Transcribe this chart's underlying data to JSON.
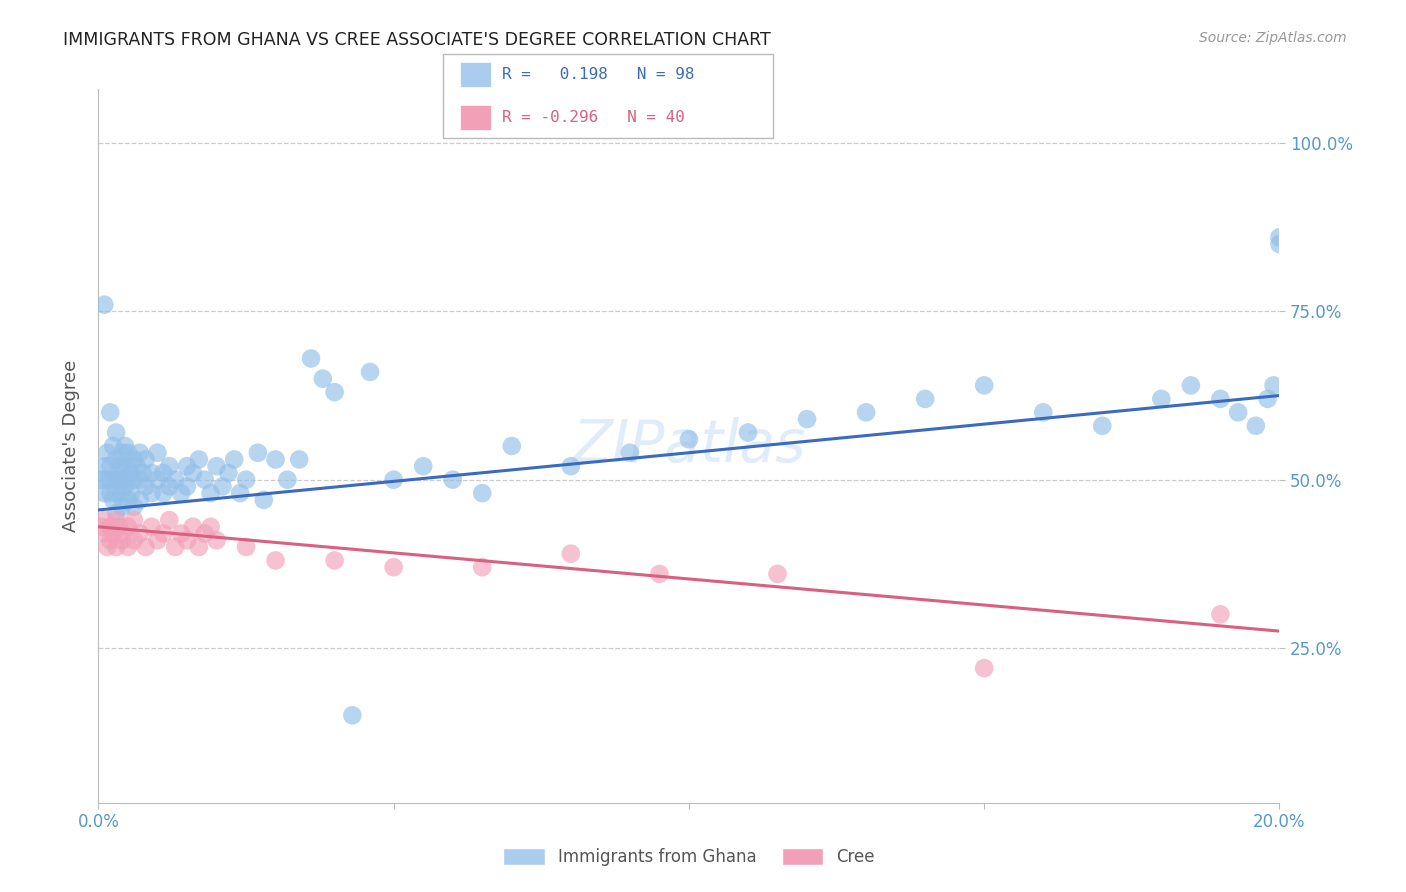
{
  "title": "IMMIGRANTS FROM GHANA VS CREE ASSOCIATE'S DEGREE CORRELATION CHART",
  "source": "Source: ZipAtlas.com",
  "ylabel": "Associate's Degree",
  "yticks": [
    "100.0%",
    "75.0%",
    "50.0%",
    "25.0%"
  ],
  "ytick_vals": [
    1.0,
    0.75,
    0.5,
    0.25
  ],
  "xlim": [
    0.0,
    0.2
  ],
  "ylim": [
    0.02,
    1.08
  ],
  "watermark": "ZIPatlas",
  "ghana_color": "#92bfe8",
  "cree_color": "#f2a0b8",
  "ghana_line_color": "#3a6bbf",
  "cree_line_color": "#d96080",
  "ghana_R": 0.198,
  "ghana_N": 98,
  "cree_R": -0.296,
  "cree_N": 40,
  "ghana_x": [
    0.0005,
    0.001,
    0.001,
    0.001,
    0.0015,
    0.0015,
    0.002,
    0.002,
    0.002,
    0.002,
    0.0025,
    0.0025,
    0.003,
    0.003,
    0.003,
    0.003,
    0.003,
    0.0035,
    0.0035,
    0.004,
    0.004,
    0.004,
    0.004,
    0.004,
    0.0045,
    0.0045,
    0.005,
    0.005,
    0.005,
    0.005,
    0.0055,
    0.0055,
    0.006,
    0.006,
    0.006,
    0.0065,
    0.007,
    0.007,
    0.007,
    0.0075,
    0.008,
    0.008,
    0.009,
    0.009,
    0.01,
    0.01,
    0.011,
    0.011,
    0.012,
    0.012,
    0.013,
    0.014,
    0.015,
    0.015,
    0.016,
    0.017,
    0.018,
    0.019,
    0.02,
    0.021,
    0.022,
    0.023,
    0.024,
    0.025,
    0.027,
    0.028,
    0.03,
    0.032,
    0.034,
    0.036,
    0.038,
    0.04,
    0.043,
    0.046,
    0.05,
    0.055,
    0.06,
    0.065,
    0.07,
    0.08,
    0.09,
    0.1,
    0.11,
    0.12,
    0.13,
    0.14,
    0.15,
    0.16,
    0.17,
    0.18,
    0.185,
    0.19,
    0.193,
    0.196,
    0.198,
    0.199,
    0.2,
    0.2
  ],
  "ghana_y": [
    0.5,
    0.52,
    0.48,
    0.76,
    0.5,
    0.54,
    0.52,
    0.5,
    0.48,
    0.6,
    0.55,
    0.47,
    0.5,
    0.53,
    0.48,
    0.57,
    0.45,
    0.52,
    0.5,
    0.54,
    0.5,
    0.48,
    0.46,
    0.52,
    0.55,
    0.49,
    0.52,
    0.5,
    0.47,
    0.54,
    0.51,
    0.48,
    0.53,
    0.5,
    0.46,
    0.52,
    0.5,
    0.47,
    0.54,
    0.51,
    0.49,
    0.53,
    0.51,
    0.48,
    0.5,
    0.54,
    0.51,
    0.48,
    0.52,
    0.49,
    0.5,
    0.48,
    0.52,
    0.49,
    0.51,
    0.53,
    0.5,
    0.48,
    0.52,
    0.49,
    0.51,
    0.53,
    0.48,
    0.5,
    0.54,
    0.47,
    0.53,
    0.5,
    0.53,
    0.68,
    0.65,
    0.63,
    0.15,
    0.66,
    0.5,
    0.52,
    0.5,
    0.48,
    0.55,
    0.52,
    0.54,
    0.56,
    0.57,
    0.59,
    0.6,
    0.62,
    0.64,
    0.6,
    0.58,
    0.62,
    0.64,
    0.62,
    0.6,
    0.58,
    0.62,
    0.64,
    0.85,
    0.86
  ],
  "cree_x": [
    0.0005,
    0.001,
    0.001,
    0.0015,
    0.002,
    0.002,
    0.0025,
    0.003,
    0.003,
    0.0035,
    0.004,
    0.004,
    0.005,
    0.005,
    0.006,
    0.006,
    0.007,
    0.008,
    0.009,
    0.01,
    0.011,
    0.012,
    0.013,
    0.014,
    0.015,
    0.016,
    0.017,
    0.018,
    0.019,
    0.02,
    0.025,
    0.03,
    0.04,
    0.05,
    0.065,
    0.08,
    0.095,
    0.115,
    0.15,
    0.19
  ],
  "cree_y": [
    0.43,
    0.44,
    0.42,
    0.4,
    0.43,
    0.41,
    0.42,
    0.44,
    0.4,
    0.43,
    0.41,
    0.42,
    0.43,
    0.4,
    0.44,
    0.41,
    0.42,
    0.4,
    0.43,
    0.41,
    0.42,
    0.44,
    0.4,
    0.42,
    0.41,
    0.43,
    0.4,
    0.42,
    0.43,
    0.41,
    0.4,
    0.38,
    0.38,
    0.37,
    0.37,
    0.39,
    0.36,
    0.36,
    0.22,
    0.3
  ],
  "ghana_line_x0": 0.0,
  "ghana_line_x1": 0.2,
  "ghana_line_y0": 0.455,
  "ghana_line_y1": 0.625,
  "cree_line_x0": 0.0,
  "cree_line_x1": 0.2,
  "cree_line_y0": 0.43,
  "cree_line_y1": 0.275,
  "grid_color": "#cccccc",
  "bg_color": "#ffffff",
  "title_color": "#222222",
  "axis_label_color": "#5599cc",
  "legend_box_color_ghana": "#aaccee",
  "legend_box_color_cree": "#f2a0b8",
  "legend_text_color_ghana": "#3a6bbf",
  "legend_text_color_cree": "#d96080"
}
